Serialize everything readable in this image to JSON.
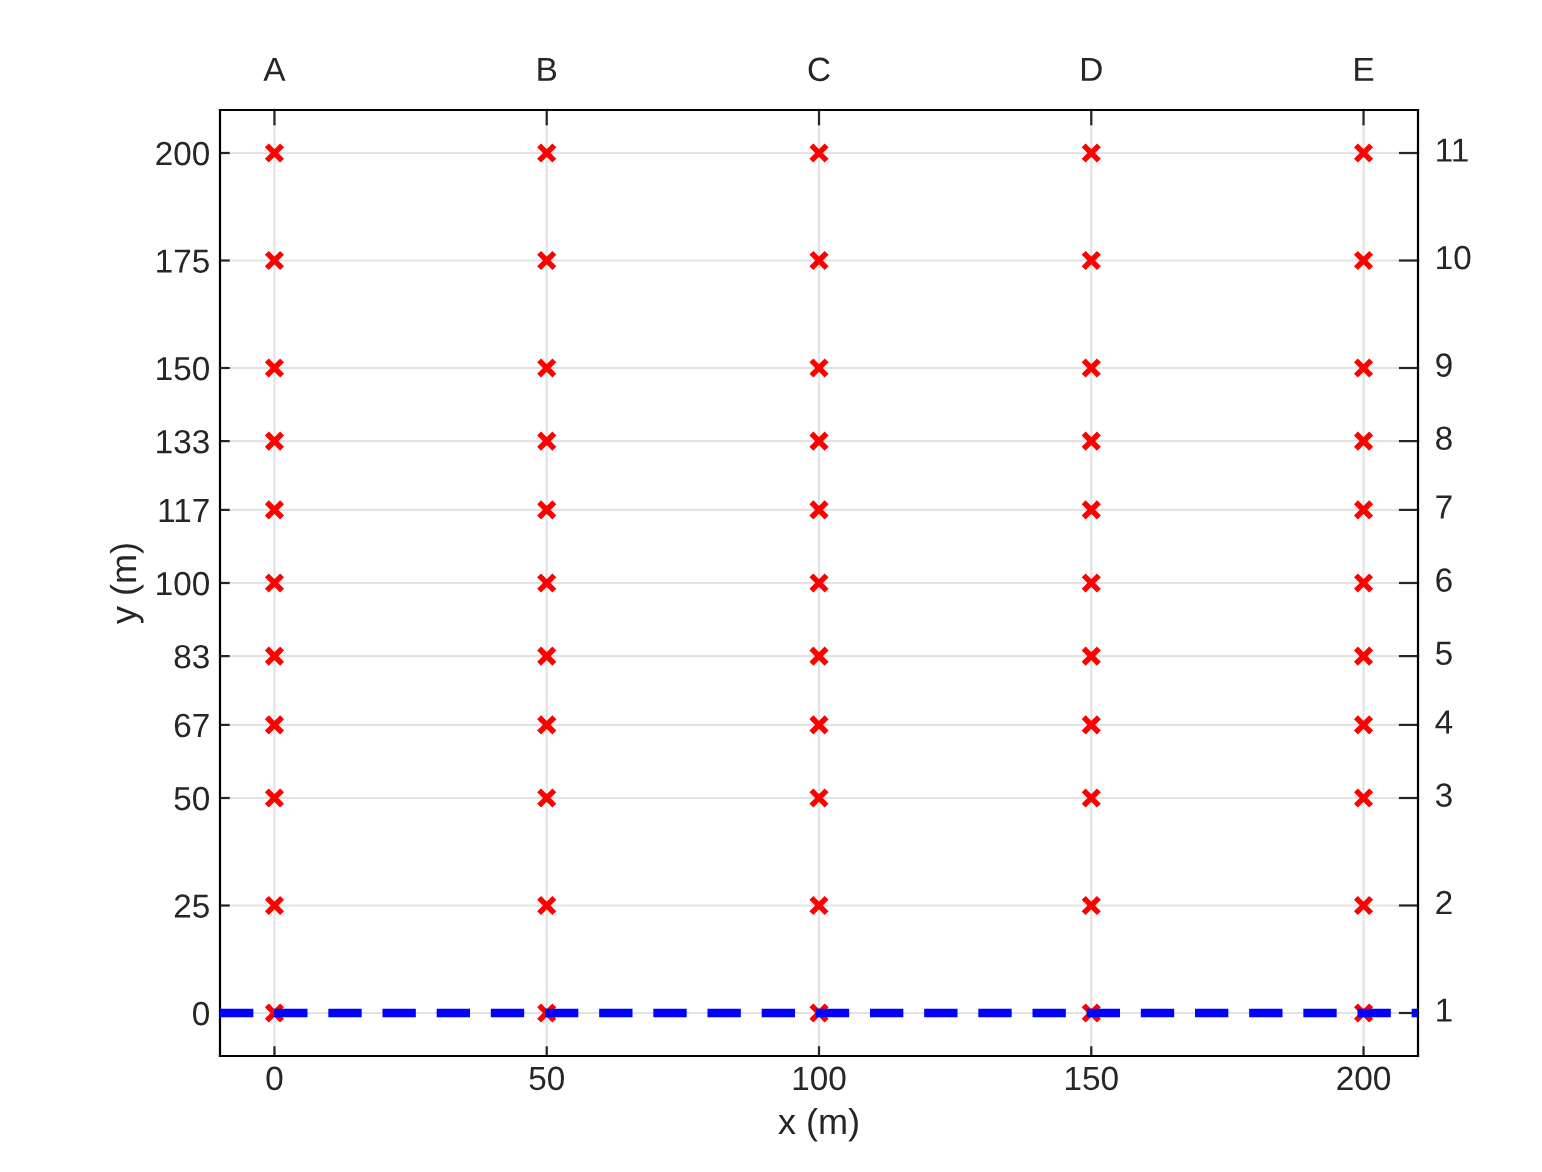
{
  "chart_data": {
    "type": "scatter",
    "xlabel": "x (m)",
    "ylabel": "y (m)",
    "xlim": [
      -10,
      210
    ],
    "ylim": [
      -10,
      210
    ],
    "xticks": [
      0,
      50,
      100,
      150,
      200
    ],
    "yticks": [
      0,
      25,
      50,
      67,
      83,
      100,
      117,
      133,
      150,
      175,
      200
    ],
    "annotations": [
      {
        "text": "A",
        "x": 0
      },
      {
        "text": "B",
        "x": 50
      },
      {
        "text": "C",
        "x": 100
      },
      {
        "text": "D",
        "x": 150
      },
      {
        "text": "E",
        "x": 200
      },
      "1",
      "2",
      "3",
      "4",
      "5",
      "6",
      "7",
      "8",
      "9",
      "10",
      "11"
    ],
    "grid": true,
    "marker": "cross",
    "series": [
      {
        "color": "#ff0000",
        "x": [
          0,
          0,
          0,
          0,
          0,
          0,
          0,
          0,
          0,
          0,
          0,
          50,
          50,
          50,
          50,
          50,
          50,
          50,
          50,
          50,
          50,
          50,
          100,
          100,
          100,
          100,
          100,
          100,
          100,
          100,
          100,
          100,
          100,
          150,
          150,
          150,
          150,
          150,
          150,
          150,
          150,
          150,
          150,
          150,
          200,
          200,
          200,
          200,
          200,
          200,
          200,
          200,
          200,
          200,
          200
        ],
        "values": [
          0,
          25,
          50,
          67,
          83,
          100,
          117,
          133,
          150,
          175,
          200,
          0,
          25,
          50,
          67,
          83,
          100,
          117,
          133,
          150,
          175,
          200,
          0,
          25,
          50,
          67,
          83,
          100,
          117,
          133,
          150,
          175,
          200,
          0,
          25,
          50,
          67,
          83,
          100,
          117,
          133,
          150,
          175,
          200,
          0,
          25,
          50,
          67,
          83,
          100,
          117,
          133,
          150,
          175,
          200
        ]
      }
    ],
    "ref_lines": [
      {
        "axis": "y",
        "value": 0,
        "color": "#0000ff",
        "line_style": "dashed"
      }
    ]
  }
}
